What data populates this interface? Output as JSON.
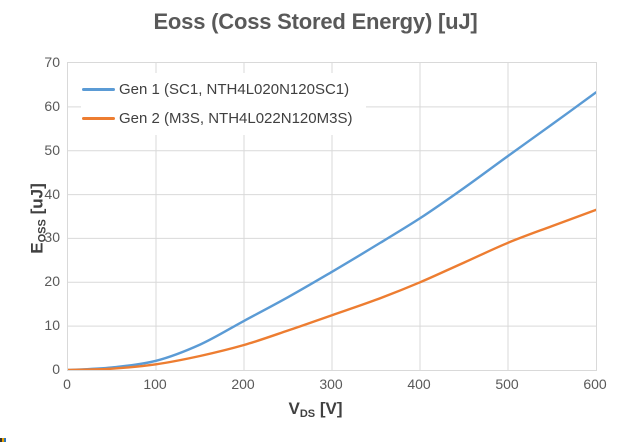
{
  "title": "Eoss (Coss Stored Energy) [uJ]",
  "colors": {
    "gen1_line": "#5B9BD5",
    "gen2_line": "#ED7D31",
    "gridline": "#D9D9D9",
    "tick_text": "#595959",
    "title_text": "#595959",
    "axis_title_text": "#404040",
    "background": "#FFFFFF"
  },
  "legend": {
    "position": "top-left-inside",
    "items": [
      {
        "label": "Gen 1 (SC1, NTH4L020N120SC1)",
        "color": "#5B9BD5"
      },
      {
        "label": "Gen 2 (M3S, NTH4L022N120M3S)",
        "color": "#ED7D31"
      }
    ]
  },
  "axes": {
    "x": {
      "title_pre": "V",
      "title_sub": "DS",
      "title_post": " [V]",
      "ticks": [
        0,
        100,
        200,
        300,
        400,
        500,
        600
      ],
      "min": 0,
      "max": 600
    },
    "y": {
      "title_pre": "E",
      "title_sub": "OSS",
      "title_post": " [uJ]",
      "ticks": [
        0,
        10,
        20,
        30,
        40,
        50,
        60,
        70
      ],
      "min": 0,
      "max": 70
    }
  },
  "chart_data": {
    "type": "line",
    "title": "Eoss (Coss Stored Energy) [uJ]",
    "xlabel": "VDS [V]",
    "ylabel": "EOSS [uJ]",
    "xlim": [
      0,
      600
    ],
    "ylim": [
      0,
      70
    ],
    "grid": true,
    "legend_position": "top-left-inside",
    "x": [
      0,
      50,
      100,
      150,
      200,
      250,
      300,
      350,
      400,
      450,
      500,
      550,
      600
    ],
    "series": [
      {
        "name": "Gen 1 (SC1, NTH4L020N120SC1)",
        "color": "#5B9BD5",
        "values": [
          0,
          0.6,
          2.1,
          5.8,
          11.2,
          16.6,
          22.4,
          28.4,
          34.6,
          41.5,
          48.8,
          56.0,
          63.3
        ]
      },
      {
        "name": "Gen 2 (M3S, NTH4L022N120M3S)",
        "color": "#ED7D31",
        "values": [
          0,
          0.3,
          1.3,
          3.2,
          5.7,
          9.0,
          12.5,
          16.0,
          20.0,
          24.5,
          29.0,
          32.8,
          36.5
        ]
      }
    ]
  },
  "artifact": {
    "pixel_colors": [
      "#333333",
      "#E8A000",
      "#2E75B6"
    ]
  }
}
